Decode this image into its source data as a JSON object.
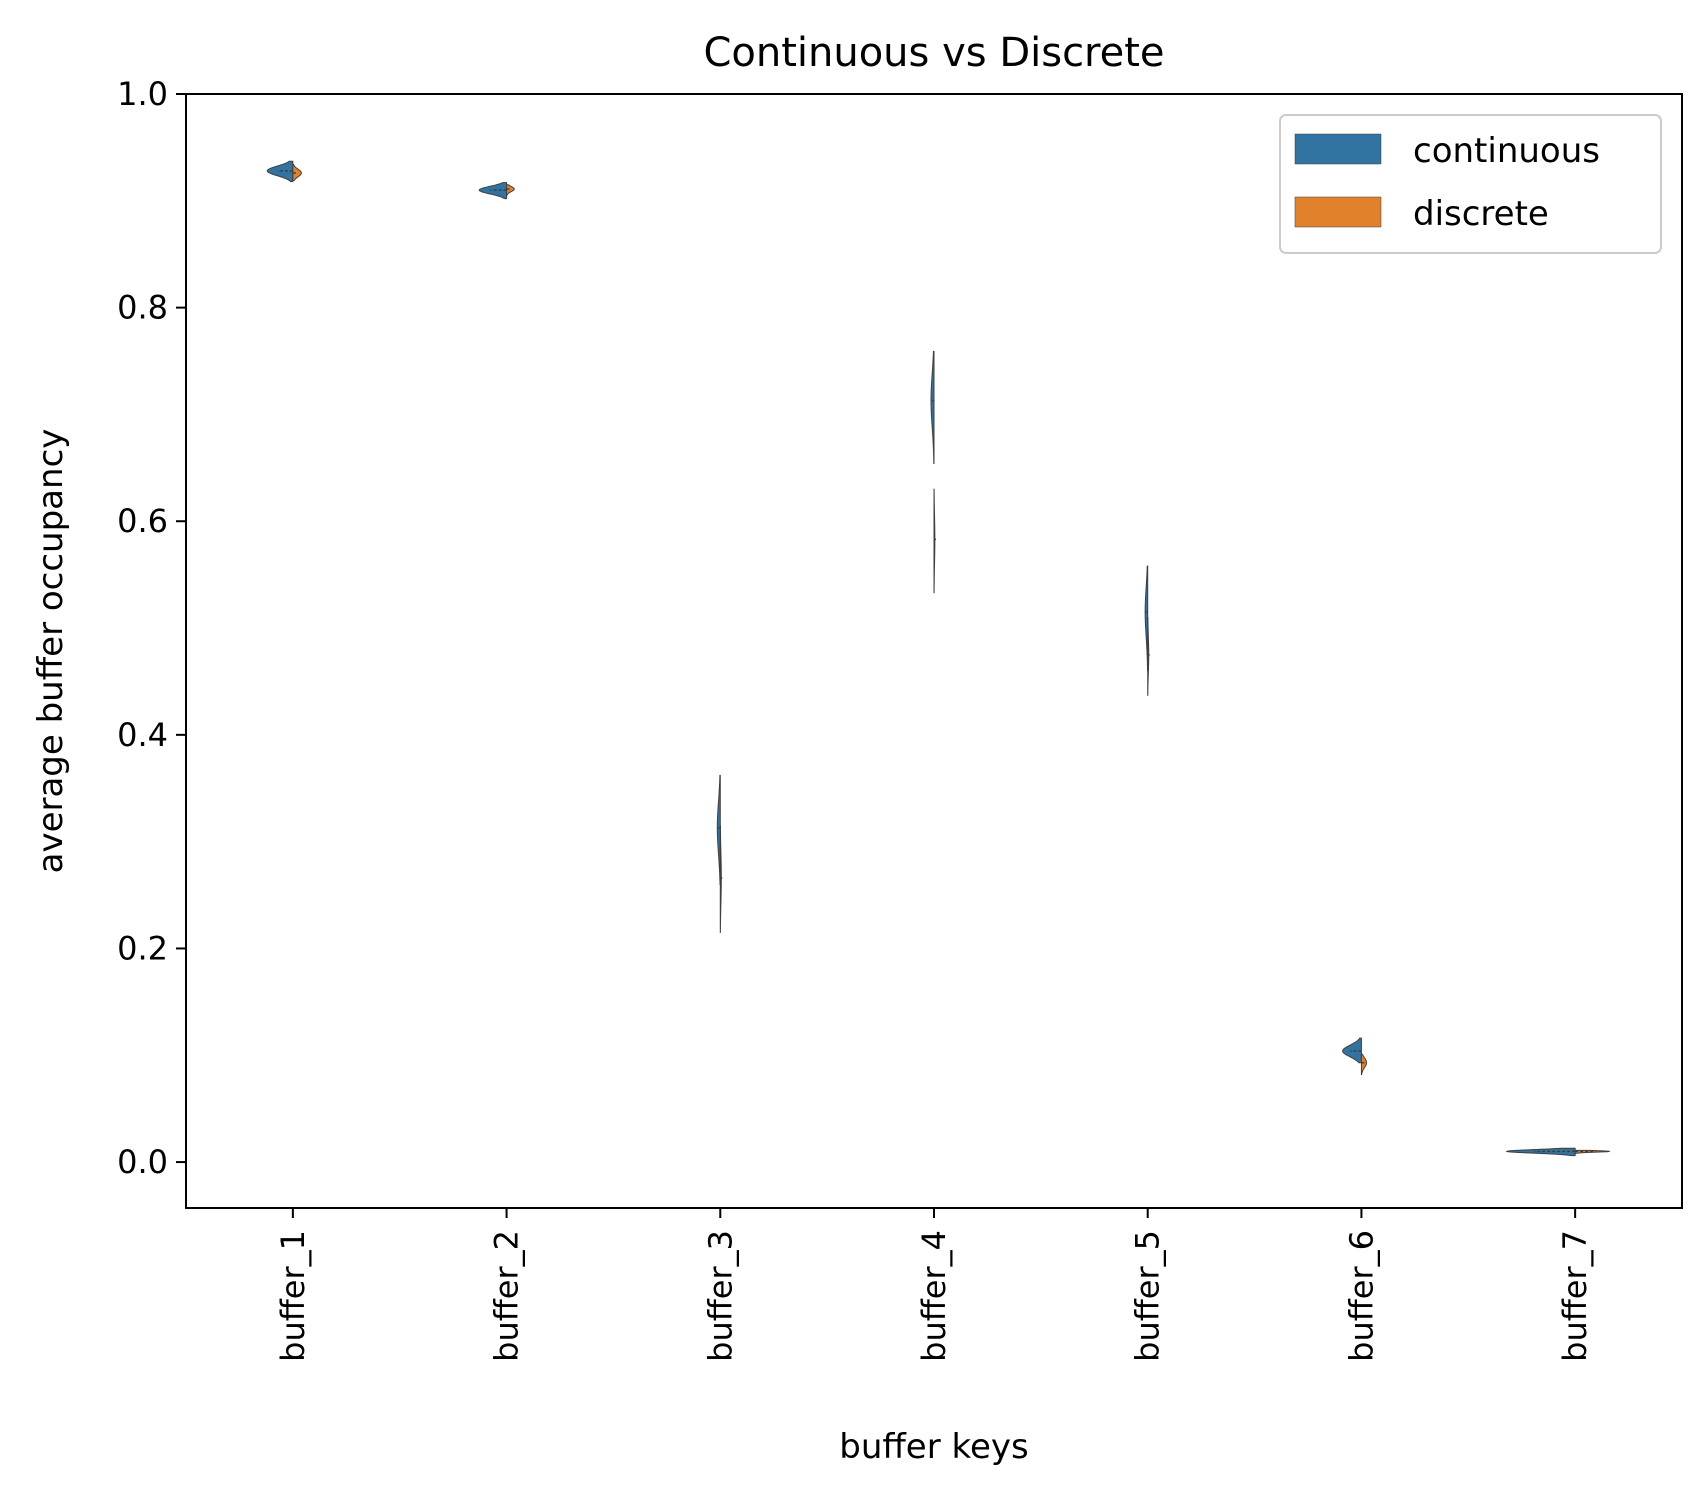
{
  "chart_data": {
    "type": "violin",
    "split": true,
    "title": "Continuous vs Discrete",
    "xlabel": "buffer keys",
    "ylabel": "average buffer occupancy",
    "ylim": [
      -0.043,
      1.0
    ],
    "yticks": [
      0.0,
      0.2,
      0.4,
      0.6,
      0.8,
      1.0
    ],
    "ytick_labels": [
      "0.0",
      "0.2",
      "0.4",
      "0.6",
      "0.8",
      "1.0"
    ],
    "categories": [
      "buffer_1",
      "buffer_2",
      "buffer_3",
      "buffer_4",
      "buffer_5",
      "buffer_6",
      "buffer_7"
    ],
    "legend": {
      "placement": "top-right",
      "entries": [
        "continuous",
        "discrete"
      ]
    },
    "colors": {
      "continuous": "#3274a1",
      "discrete": "#e1812c"
    },
    "series": [
      {
        "name": "continuous",
        "distributions": [
          {
            "min": 0.918,
            "max": 0.937,
            "median": 0.928,
            "peak_width": 0.3
          },
          {
            "min": 0.902,
            "max": 0.917,
            "median": 0.91,
            "peak_width": 0.32
          },
          {
            "min": 0.26,
            "max": 0.362,
            "median": 0.313,
            "peak_width": 0.035
          },
          {
            "min": 0.654,
            "max": 0.759,
            "median": 0.713,
            "peak_width": 0.035
          },
          {
            "min": 0.46,
            "max": 0.558,
            "median": 0.515,
            "peak_width": 0.03
          },
          {
            "min": 0.093,
            "max": 0.116,
            "median": 0.104,
            "peak_width": 0.22
          },
          {
            "min": 0.006,
            "max": 0.013,
            "median": 0.01,
            "peak_width": 0.8
          }
        ]
      },
      {
        "name": "discrete",
        "distributions": [
          {
            "min": 0.919,
            "max": 0.934,
            "median": 0.926,
            "peak_width": 0.1
          },
          {
            "min": 0.905,
            "max": 0.915,
            "median": 0.911,
            "peak_width": 0.09
          },
          {
            "min": 0.215,
            "max": 0.315,
            "median": 0.266,
            "peak_width": 0.012
          },
          {
            "min": 0.533,
            "max": 0.63,
            "median": 0.583,
            "peak_width": 0.01
          },
          {
            "min": 0.437,
            "max": 0.51,
            "median": 0.475,
            "peak_width": 0.012
          },
          {
            "min": 0.082,
            "max": 0.101,
            "median": 0.093,
            "peak_width": 0.06
          },
          {
            "min": 0.008,
            "max": 0.011,
            "median": 0.01,
            "peak_width": 0.4
          }
        ]
      }
    ]
  }
}
